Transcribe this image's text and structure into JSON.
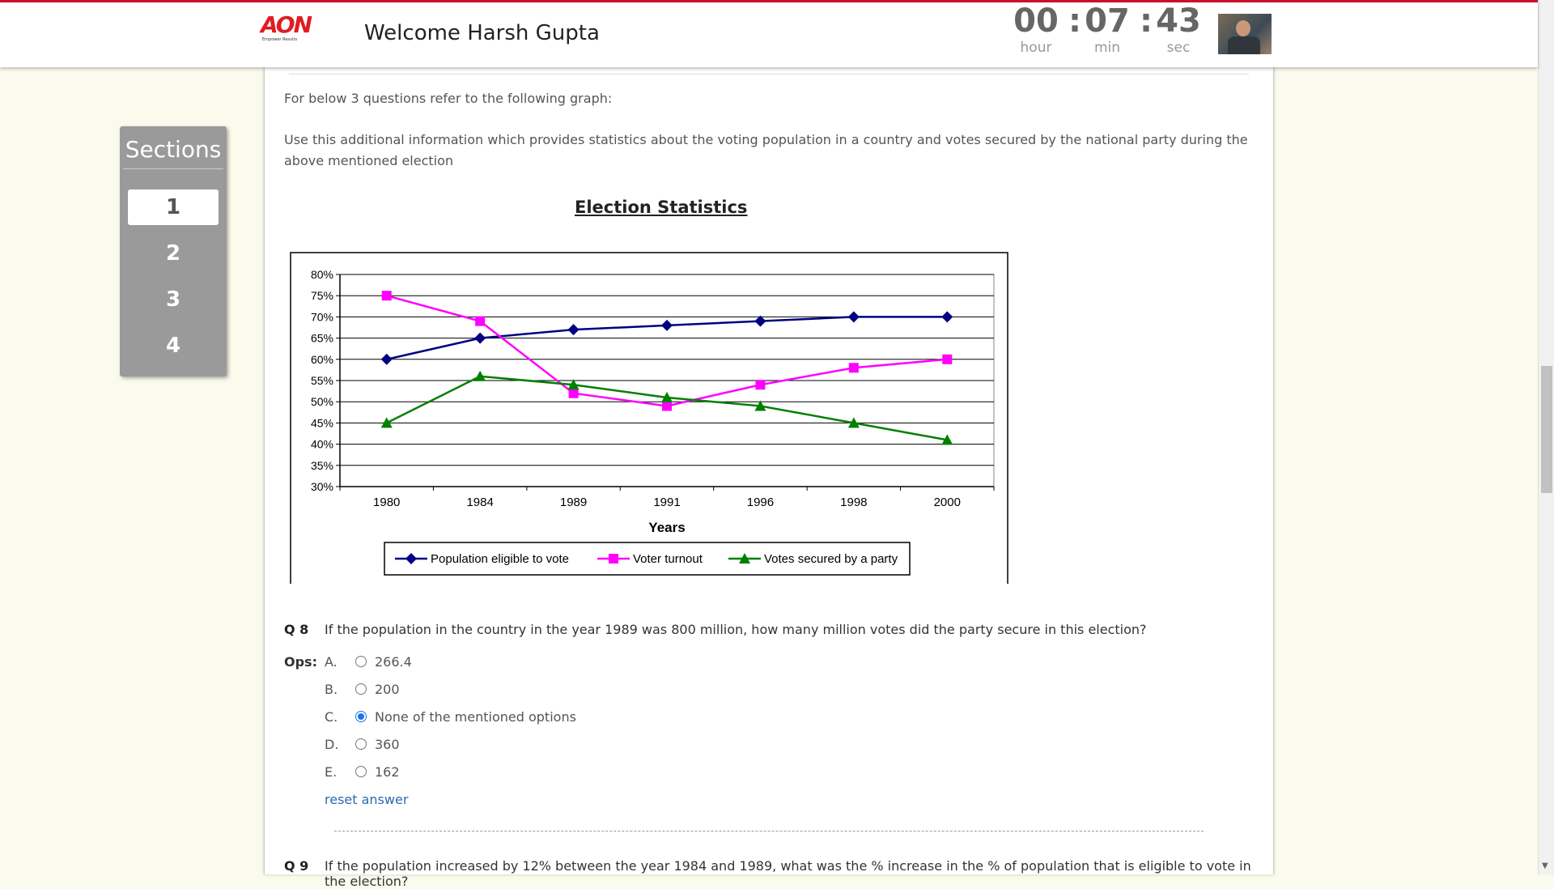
{
  "header": {
    "logo_text": "AON",
    "logo_tagline": "Empower Results",
    "welcome": "Welcome Harsh Gupta",
    "timer": {
      "hour": "00",
      "min": "07",
      "sec": "43",
      "hour_label": "hour",
      "min_label": "min",
      "sec_label": "sec",
      "separator": ":"
    }
  },
  "sections": {
    "title": "Sections",
    "items": [
      {
        "label": "1",
        "active": true
      },
      {
        "label": "2"
      },
      {
        "label": "3"
      },
      {
        "label": "4"
      }
    ]
  },
  "content": {
    "intro": "For below 3 questions refer to the following graph:",
    "info": "Use this additional information which provides statistics about the voting population in a country and votes secured by the national party during the above mentioned election",
    "chart_title": "Election Statistics"
  },
  "chart_data": {
    "type": "line",
    "xlabel": "Years",
    "categories": [
      "1980",
      "1984",
      "1989",
      "1991",
      "1996",
      "1998",
      "2000"
    ],
    "y_ticks": [
      "30%",
      "35%",
      "40%",
      "45%",
      "50%",
      "55%",
      "60%",
      "65%",
      "70%",
      "75%",
      "80%"
    ],
    "ylim": [
      30,
      80
    ],
    "grid": true,
    "legend_position": "bottom",
    "series": [
      {
        "name": "Population eligible to vote",
        "color": "#000080",
        "marker": "diamond",
        "values": [
          60,
          65,
          67,
          68,
          69,
          70,
          70
        ]
      },
      {
        "name": "Voter turnout",
        "color": "#ff00ff",
        "marker": "square",
        "values": [
          75,
          69,
          52,
          49,
          54,
          58,
          60
        ]
      },
      {
        "name": "Votes secured by a party",
        "color": "#008000",
        "marker": "triangle",
        "values": [
          45,
          56,
          54,
          51,
          49,
          45,
          41
        ]
      }
    ]
  },
  "questions": [
    {
      "number": "Q 8",
      "text": "If the population in the country in the year 1989 was 800 million, how many million votes did the party secure in this election?",
      "ops_label": "Ops:",
      "options": [
        {
          "letter": "A.",
          "text": "266.4",
          "selected": false
        },
        {
          "letter": "B.",
          "text": "200",
          "selected": false
        },
        {
          "letter": "C.",
          "text": "None of the mentioned options",
          "selected": true
        },
        {
          "letter": "D.",
          "text": "360",
          "selected": false
        },
        {
          "letter": "E.",
          "text": "162",
          "selected": false
        }
      ],
      "reset_label": "reset answer"
    },
    {
      "number": "Q 9",
      "text": "If the population increased by 12% between the year 1984 and 1989, what was the % increase in the % of population that is eligible to vote in the election?"
    }
  ]
}
